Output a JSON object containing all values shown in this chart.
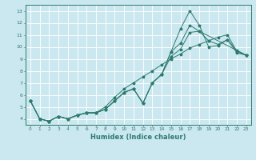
{
  "xlabel": "Humidex (Indice chaleur)",
  "bg_color": "#cbe8f0",
  "grid_color": "#ffffff",
  "line_color": "#2d7a6e",
  "xlim": [
    -0.5,
    23.5
  ],
  "ylim": [
    3.5,
    13.5
  ],
  "xticks": [
    0,
    1,
    2,
    3,
    4,
    5,
    6,
    7,
    8,
    9,
    10,
    11,
    12,
    13,
    14,
    15,
    16,
    17,
    18,
    19,
    20,
    21,
    22,
    23
  ],
  "yticks": [
    4,
    5,
    6,
    7,
    8,
    9,
    10,
    11,
    12,
    13
  ],
  "series1": [
    [
      0,
      5.5
    ],
    [
      1,
      4.0
    ],
    [
      2,
      3.8
    ],
    [
      3,
      4.2
    ],
    [
      4,
      4.0
    ],
    [
      5,
      4.3
    ],
    [
      6,
      4.5
    ],
    [
      7,
      4.5
    ],
    [
      8,
      4.8
    ],
    [
      9,
      5.5
    ],
    [
      10,
      6.2
    ],
    [
      11,
      6.5
    ],
    [
      12,
      5.3
    ],
    [
      13,
      7.0
    ],
    [
      14,
      7.7
    ],
    [
      15,
      9.6
    ],
    [
      16,
      11.5
    ],
    [
      17,
      13.0
    ],
    [
      18,
      11.8
    ],
    [
      19,
      10.0
    ],
    [
      20,
      10.1
    ],
    [
      21,
      10.6
    ],
    [
      22,
      9.5
    ],
    [
      23,
      9.3
    ]
  ],
  "series2": [
    [
      0,
      5.5
    ],
    [
      1,
      4.0
    ],
    [
      2,
      3.8
    ],
    [
      3,
      4.2
    ],
    [
      4,
      4.0
    ],
    [
      5,
      4.3
    ],
    [
      6,
      4.5
    ],
    [
      7,
      4.5
    ],
    [
      8,
      4.8
    ],
    [
      9,
      5.5
    ],
    [
      10,
      6.2
    ],
    [
      11,
      6.5
    ],
    [
      12,
      5.3
    ],
    [
      13,
      7.0
    ],
    [
      14,
      7.7
    ],
    [
      15,
      9.6
    ],
    [
      16,
      10.3
    ],
    [
      17,
      11.8
    ],
    [
      18,
      11.3
    ],
    [
      19,
      10.5
    ],
    [
      20,
      10.2
    ],
    [
      21,
      10.6
    ],
    [
      22,
      9.7
    ],
    [
      23,
      9.3
    ]
  ],
  "series3": [
    [
      0,
      5.5
    ],
    [
      1,
      4.0
    ],
    [
      2,
      3.8
    ],
    [
      3,
      4.2
    ],
    [
      4,
      4.0
    ],
    [
      5,
      4.3
    ],
    [
      6,
      4.5
    ],
    [
      7,
      4.5
    ],
    [
      8,
      4.8
    ],
    [
      9,
      5.5
    ],
    [
      10,
      6.2
    ],
    [
      11,
      6.5
    ],
    [
      12,
      5.3
    ],
    [
      13,
      7.0
    ],
    [
      14,
      7.7
    ],
    [
      15,
      9.2
    ],
    [
      16,
      9.8
    ],
    [
      17,
      11.2
    ],
    [
      18,
      11.3
    ],
    [
      23,
      9.3
    ]
  ],
  "series4": [
    [
      0,
      5.5
    ],
    [
      1,
      4.0
    ],
    [
      2,
      3.8
    ],
    [
      3,
      4.2
    ],
    [
      4,
      4.0
    ],
    [
      5,
      4.3
    ],
    [
      6,
      4.5
    ],
    [
      7,
      4.5
    ],
    [
      8,
      5.0
    ],
    [
      9,
      5.8
    ],
    [
      10,
      6.5
    ],
    [
      11,
      7.0
    ],
    [
      12,
      7.5
    ],
    [
      13,
      8.0
    ],
    [
      14,
      8.5
    ],
    [
      15,
      9.0
    ],
    [
      16,
      9.4
    ],
    [
      17,
      9.9
    ],
    [
      18,
      10.2
    ],
    [
      19,
      10.5
    ],
    [
      20,
      10.8
    ],
    [
      21,
      11.0
    ],
    [
      22,
      9.6
    ],
    [
      23,
      9.3
    ]
  ]
}
